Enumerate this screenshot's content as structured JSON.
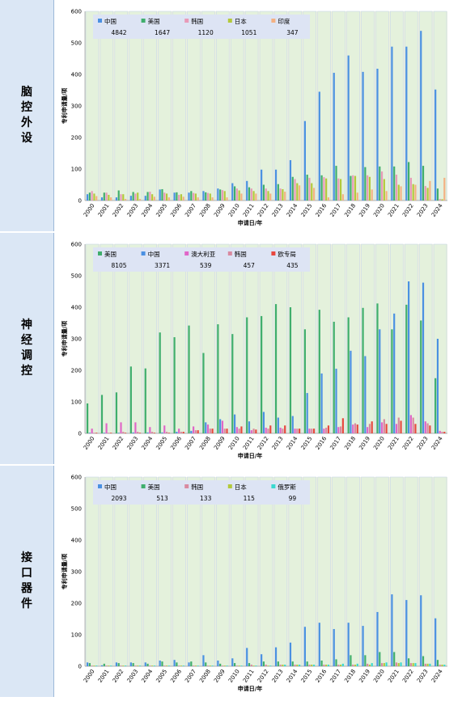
{
  "colors": {
    "China": "#4a90e2",
    "USA": "#3fae6c",
    "Korea": "#e89ab8",
    "Japan": "#b3c93a",
    "India": "#f4b183",
    "Australia": "#e066c8",
    "EPO": "#e8473f",
    "Russia": "#3ad9d0",
    "KoreaN": "#d98aa0",
    "plot_bg": "#eef2dd",
    "bar_bg": "#e4f1dc",
    "legend_bg": "#dde4f4",
    "sidebar": "#dbe7f5"
  },
  "years": [
    "2000",
    "2001",
    "2002",
    "2003",
    "2004",
    "2005",
    "2006",
    "2007",
    "2008",
    "2009",
    "2010",
    "2011",
    "2012",
    "2013",
    "2014",
    "2015",
    "2016",
    "2017",
    "2018",
    "2019",
    "2020",
    "2021",
    "2022",
    "2023",
    "2024"
  ],
  "panels": [
    {
      "label": [
        "脑",
        "控",
        "外",
        "设"
      ],
      "chart_data": {
        "type": "bar",
        "xlabel": "申请日/年",
        "ylabel": "专利申请量/项",
        "ylim": [
          0,
          600
        ],
        "yticks": [
          0,
          100,
          200,
          300,
          400,
          500,
          600
        ],
        "legend": [
          {
            "name": "中国",
            "total": "4842",
            "color": "China"
          },
          {
            "name": "美国",
            "total": "1647",
            "color": "USA"
          },
          {
            "name": "韩国",
            "total": "1120",
            "color": "Korea"
          },
          {
            "name": "日本",
            "total": "1051",
            "color": "Japan"
          },
          {
            "name": "印度",
            "total": "347",
            "color": "India"
          }
        ],
        "series": [
          {
            "name": "中国",
            "color": "China",
            "values": [
              20,
              10,
              10,
              15,
              15,
              35,
              25,
              25,
              30,
              38,
              55,
              62,
              98,
              98,
              128,
              252,
              345,
              405,
              460,
              408,
              418,
              488,
              488,
              538,
              352
            ]
          },
          {
            "name": "美国",
            "color": "USA",
            "values": [
              25,
              25,
              32,
              27,
              27,
              36,
              26,
              30,
              26,
              35,
              45,
              42,
              50,
              52,
              75,
              82,
              80,
              110,
              78,
              106,
              108,
              108,
              122,
              110,
              38
            ]
          },
          {
            "name": "韩国",
            "color": "Korea",
            "values": [
              30,
              25,
              20,
              22,
              28,
              25,
              18,
              24,
              24,
              33,
              38,
              38,
              38,
              38,
              68,
              72,
              74,
              70,
              80,
              80,
              92,
              82,
              72,
              46,
              5
            ]
          },
          {
            "name": "日本",
            "color": "Japan",
            "values": [
              22,
              18,
              20,
              25,
              20,
              22,
              20,
              22,
              22,
              30,
              32,
              30,
              30,
              36,
              55,
              55,
              70,
              68,
              78,
              75,
              68,
              50,
              52,
              40,
              4
            ]
          },
          {
            "name": "印度",
            "color": "India",
            "values": [
              14,
              10,
              5,
              5,
              12,
              10,
              12,
              10,
              10,
              10,
              22,
              22,
              22,
              28,
              48,
              40,
              10,
              20,
              25,
              35,
              30,
              45,
              50,
              62,
              72
            ]
          }
        ]
      }
    },
    {
      "label": [
        "神",
        "经",
        "调",
        "控"
      ],
      "chart_data": {
        "type": "bar",
        "xlabel": "申请日/年",
        "ylabel": "专利申请量/项",
        "ylim": [
          0,
          600
        ],
        "yticks": [
          0,
          100,
          200,
          300,
          400,
          500,
          600
        ],
        "legend": [
          {
            "name": "美国",
            "total": "8105",
            "color": "USA"
          },
          {
            "name": "中国",
            "total": "3371",
            "color": "China"
          },
          {
            "name": "澳大利亚",
            "total": "539",
            "color": "Australia"
          },
          {
            "name": "韩国",
            "total": "457",
            "color": "KoreaN"
          },
          {
            "name": "欧专局",
            "total": "435",
            "color": "EPO"
          }
        ],
        "series": [
          {
            "name": "美国",
            "color": "USA",
            "values": [
              95,
              122,
              130,
              212,
              206,
              320,
              305,
              342,
              255,
              346,
              315,
              368,
              372,
              410,
              400,
              330,
              392,
              354,
              368,
              398,
              412,
              330,
              408,
              358,
              175
            ]
          },
          {
            "name": "中国",
            "color": "China",
            "values": [
              2,
              2,
              2,
              3,
              3,
              3,
              5,
              8,
              35,
              45,
              60,
              38,
              68,
              50,
              55,
              128,
              190,
              205,
              262,
              245,
              330,
              380,
              482,
              478,
              300
            ]
          },
          {
            "name": "澳大利亚",
            "color": "Australia",
            "values": [
              15,
              32,
              35,
              35,
              20,
              25,
              15,
              22,
              28,
              40,
              20,
              10,
              18,
              18,
              15,
              15,
              15,
              20,
              28,
              20,
              35,
              30,
              58,
              38,
              8
            ]
          },
          {
            "name": "韩国",
            "color": "KoreaN",
            "values": [
              2,
              2,
              5,
              5,
              5,
              5,
              5,
              10,
              15,
              15,
              15,
              15,
              15,
              15,
              15,
              15,
              18,
              22,
              32,
              30,
              45,
              50,
              50,
              32,
              5
            ]
          },
          {
            "name": "欧专局",
            "color": "EPO",
            "values": [
              2,
              2,
              2,
              2,
              2,
              2,
              5,
              10,
              15,
              15,
              22,
              12,
              25,
              25,
              15,
              15,
              25,
              48,
              28,
              38,
              30,
              40,
              30,
              25,
              5
            ]
          }
        ]
      }
    },
    {
      "label": [
        "接",
        "口",
        "器",
        "件"
      ],
      "chart_data": {
        "type": "bar",
        "xlabel": "申请日/年",
        "ylabel": "专利申请量/项",
        "ylim": [
          0,
          600
        ],
        "yticks": [
          0,
          100,
          200,
          300,
          400,
          500,
          600
        ],
        "legend": [
          {
            "name": "中国",
            "total": "2093",
            "color": "China"
          },
          {
            "name": "美国",
            "total": "513",
            "color": "USA"
          },
          {
            "name": "韩国",
            "total": "133",
            "color": "KoreaN"
          },
          {
            "name": "日本",
            "total": "115",
            "color": "Japan"
          },
          {
            "name": "俄罗斯",
            "total": "99",
            "color": "Russia"
          }
        ],
        "series": [
          {
            "name": "中国",
            "color": "China",
            "values": [
              12,
              3,
              12,
              12,
              12,
              18,
              20,
              12,
              35,
              18,
              25,
              58,
              38,
              60,
              75,
              125,
              138,
              118,
              138,
              128,
              172,
              228,
              210,
              225,
              152
            ]
          },
          {
            "name": "美国",
            "color": "USA",
            "values": [
              10,
              8,
              10,
              10,
              8,
              15,
              12,
              15,
              12,
              8,
              10,
              10,
              15,
              15,
              15,
              15,
              18,
              22,
              35,
              35,
              45,
              45,
              25,
              32,
              20
            ]
          },
          {
            "name": "韩国",
            "color": "KoreaN",
            "values": [
              2,
              2,
              2,
              2,
              2,
              2,
              2,
              2,
              2,
              2,
              2,
              5,
              5,
              5,
              5,
              5,
              5,
              5,
              5,
              8,
              10,
              12,
              10,
              8,
              5
            ]
          },
          {
            "name": "日本",
            "color": "Japan",
            "values": [
              2,
              2,
              2,
              2,
              2,
              2,
              2,
              2,
              2,
              2,
              2,
              2,
              2,
              5,
              5,
              5,
              5,
              5,
              5,
              5,
              10,
              10,
              10,
              8,
              5
            ]
          },
          {
            "name": "俄罗斯",
            "color": "Russia",
            "values": [
              2,
              2,
              2,
              2,
              2,
              2,
              2,
              2,
              2,
              2,
              2,
              2,
              2,
              5,
              5,
              5,
              5,
              8,
              8,
              10,
              12,
              12,
              10,
              8,
              5
            ]
          }
        ]
      }
    }
  ]
}
